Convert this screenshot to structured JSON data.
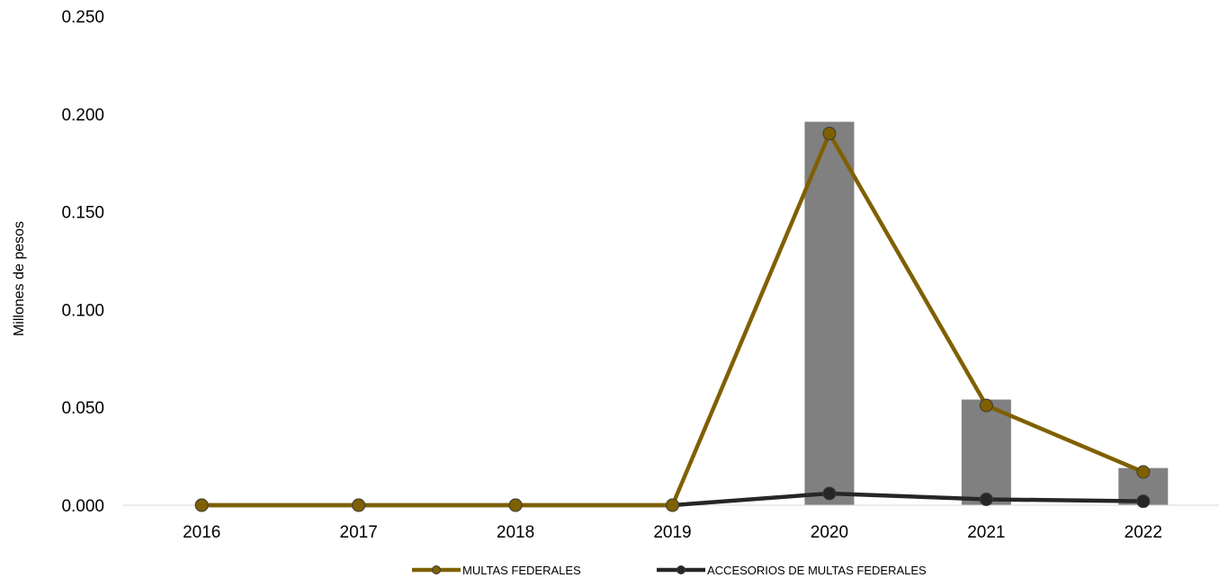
{
  "chart_data": {
    "type": "bar+line",
    "categories": [
      "2016",
      "2017",
      "2018",
      "2019",
      "2020",
      "2021",
      "2022"
    ],
    "bars": {
      "values": [
        0,
        0,
        0,
        0,
        0.196,
        0.054,
        0.019
      ],
      "color": "#808080"
    },
    "series": [
      {
        "name": "MULTAS FEDERALES",
        "values": [
          0,
          0,
          0,
          0,
          0.19,
          0.051,
          0.017
        ],
        "color": "#7F6000"
      },
      {
        "name": "ACCESORIOS DE MULTAS FEDERALES",
        "values": [
          0,
          0,
          0,
          0,
          0.006,
          0.003,
          0.002
        ],
        "color": "#262626"
      }
    ],
    "ylabel": "Millones de pesos",
    "ylim": [
      0,
      0.25
    ],
    "yticks": [
      "0.000",
      "0.050",
      "0.100",
      "0.150",
      "0.200",
      "0.250"
    ],
    "grid": false,
    "legend_position": "bottom"
  }
}
